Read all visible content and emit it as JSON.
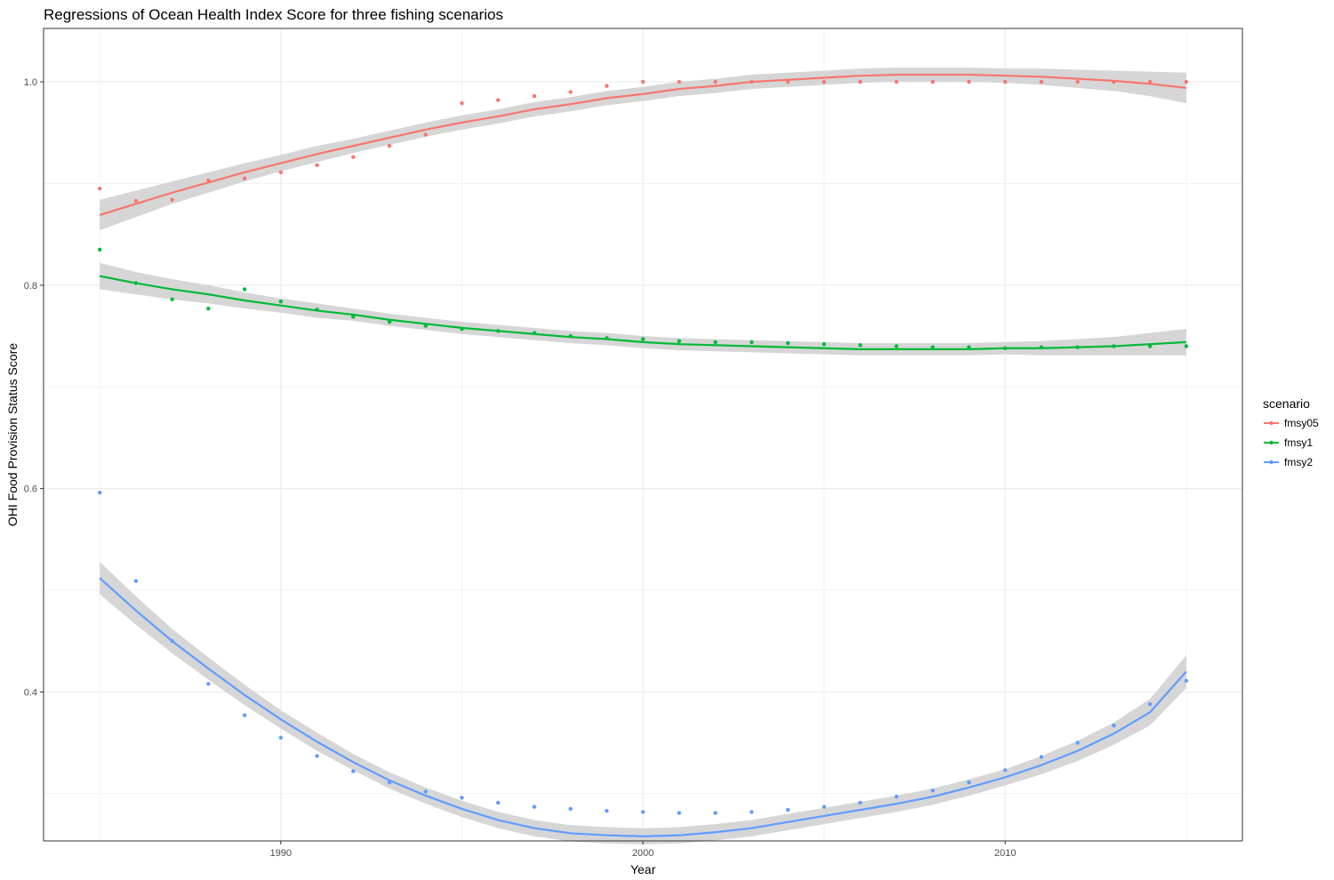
{
  "chart_data": {
    "type": "scatter",
    "title": "Regressions of Ocean Health Index Score for three fishing scenarios",
    "xlabel": "Year",
    "ylabel": "OHI Food Provision Status Score",
    "xlim": [
      1983.45,
      2016.55
    ],
    "ylim": [
      0.2535,
      1.0525
    ],
    "xticks": [
      1990,
      2000,
      2010
    ],
    "xtick_labels": [
      "1990",
      "2000",
      "2010"
    ],
    "yticks": [
      0.4,
      0.6,
      0.8,
      1.0
    ],
    "ytick_labels": [
      "0.4",
      "0.6",
      "0.8",
      "1.0"
    ],
    "grid": true,
    "legend": {
      "title": "scenario",
      "position": "right"
    },
    "x": [
      1985,
      1986,
      1987,
      1988,
      1989,
      1990,
      1991,
      1992,
      1993,
      1994,
      1995,
      1996,
      1997,
      1998,
      1999,
      2000,
      2001,
      2002,
      2003,
      2004,
      2005,
      2006,
      2007,
      2008,
      2009,
      2010,
      2011,
      2012,
      2013,
      2014,
      2015
    ],
    "series": [
      {
        "name": "fmsy05",
        "color": "#F8766D",
        "points": [
          0.895,
          0.883,
          0.884,
          0.903,
          0.905,
          0.911,
          0.918,
          0.926,
          0.937,
          0.948,
          0.979,
          0.982,
          0.986,
          0.99,
          0.996,
          1.0,
          1.0,
          1.0,
          1.0,
          1.0,
          1.0,
          1.0,
          1.0,
          1.0,
          1.0,
          1.0,
          1.0,
          1.0,
          1.0,
          1.0,
          1.0
        ],
        "fit": [
          0.869,
          0.88,
          0.891,
          0.901,
          0.911,
          0.92,
          0.929,
          0.937,
          0.945,
          0.953,
          0.96,
          0.966,
          0.973,
          0.978,
          0.984,
          0.988,
          0.993,
          0.996,
          1.0,
          1.002,
          1.004,
          1.006,
          1.007,
          1.007,
          1.007,
          1.006,
          1.005,
          1.003,
          1.001,
          0.998,
          0.994
        ],
        "band": [
          0.015,
          0.013,
          0.011,
          0.01,
          0.009,
          0.008,
          0.008,
          0.007,
          0.007,
          0.007,
          0.007,
          0.007,
          0.007,
          0.007,
          0.007,
          0.007,
          0.007,
          0.007,
          0.007,
          0.007,
          0.007,
          0.007,
          0.007,
          0.007,
          0.007,
          0.007,
          0.008,
          0.009,
          0.01,
          0.012,
          0.015
        ]
      },
      {
        "name": "fmsy1",
        "color": "#00BA38",
        "points": [
          0.835,
          0.802,
          0.786,
          0.777,
          0.796,
          0.784,
          0.776,
          0.769,
          0.764,
          0.76,
          0.757,
          0.755,
          0.753,
          0.75,
          0.748,
          0.747,
          0.745,
          0.744,
          0.744,
          0.743,
          0.742,
          0.741,
          0.74,
          0.739,
          0.739,
          0.738,
          0.739,
          0.739,
          0.74,
          0.74,
          0.74
        ],
        "fit": [
          0.809,
          0.802,
          0.796,
          0.791,
          0.785,
          0.78,
          0.775,
          0.771,
          0.766,
          0.762,
          0.758,
          0.755,
          0.752,
          0.749,
          0.747,
          0.744,
          0.742,
          0.741,
          0.74,
          0.739,
          0.738,
          0.737,
          0.737,
          0.737,
          0.737,
          0.738,
          0.738,
          0.739,
          0.74,
          0.742,
          0.744
        ],
        "band": [
          0.013,
          0.011,
          0.01,
          0.009,
          0.008,
          0.007,
          0.007,
          0.006,
          0.006,
          0.006,
          0.006,
          0.006,
          0.006,
          0.006,
          0.006,
          0.006,
          0.006,
          0.006,
          0.006,
          0.006,
          0.006,
          0.006,
          0.006,
          0.006,
          0.006,
          0.006,
          0.007,
          0.008,
          0.009,
          0.011,
          0.013
        ]
      },
      {
        "name": "fmsy2",
        "color": "#619CFF",
        "points": [
          0.596,
          0.509,
          0.45,
          0.408,
          0.377,
          0.355,
          0.337,
          0.322,
          0.311,
          0.302,
          0.296,
          0.291,
          0.287,
          0.285,
          0.283,
          0.282,
          0.281,
          0.281,
          0.282,
          0.284,
          0.287,
          0.291,
          0.297,
          0.303,
          0.311,
          0.323,
          0.336,
          0.35,
          0.367,
          0.388,
          0.411
        ],
        "fit": [
          0.512,
          0.48,
          0.45,
          0.423,
          0.397,
          0.373,
          0.351,
          0.331,
          0.313,
          0.298,
          0.285,
          0.274,
          0.266,
          0.261,
          0.259,
          0.258,
          0.259,
          0.262,
          0.266,
          0.272,
          0.278,
          0.284,
          0.29,
          0.297,
          0.306,
          0.316,
          0.328,
          0.342,
          0.359,
          0.38,
          0.42
        ],
        "band": [
          0.016,
          0.014,
          0.012,
          0.011,
          0.01,
          0.009,
          0.009,
          0.008,
          0.008,
          0.008,
          0.008,
          0.008,
          0.008,
          0.008,
          0.008,
          0.008,
          0.008,
          0.008,
          0.008,
          0.008,
          0.008,
          0.008,
          0.008,
          0.008,
          0.008,
          0.008,
          0.009,
          0.01,
          0.011,
          0.013,
          0.016
        ]
      }
    ]
  }
}
